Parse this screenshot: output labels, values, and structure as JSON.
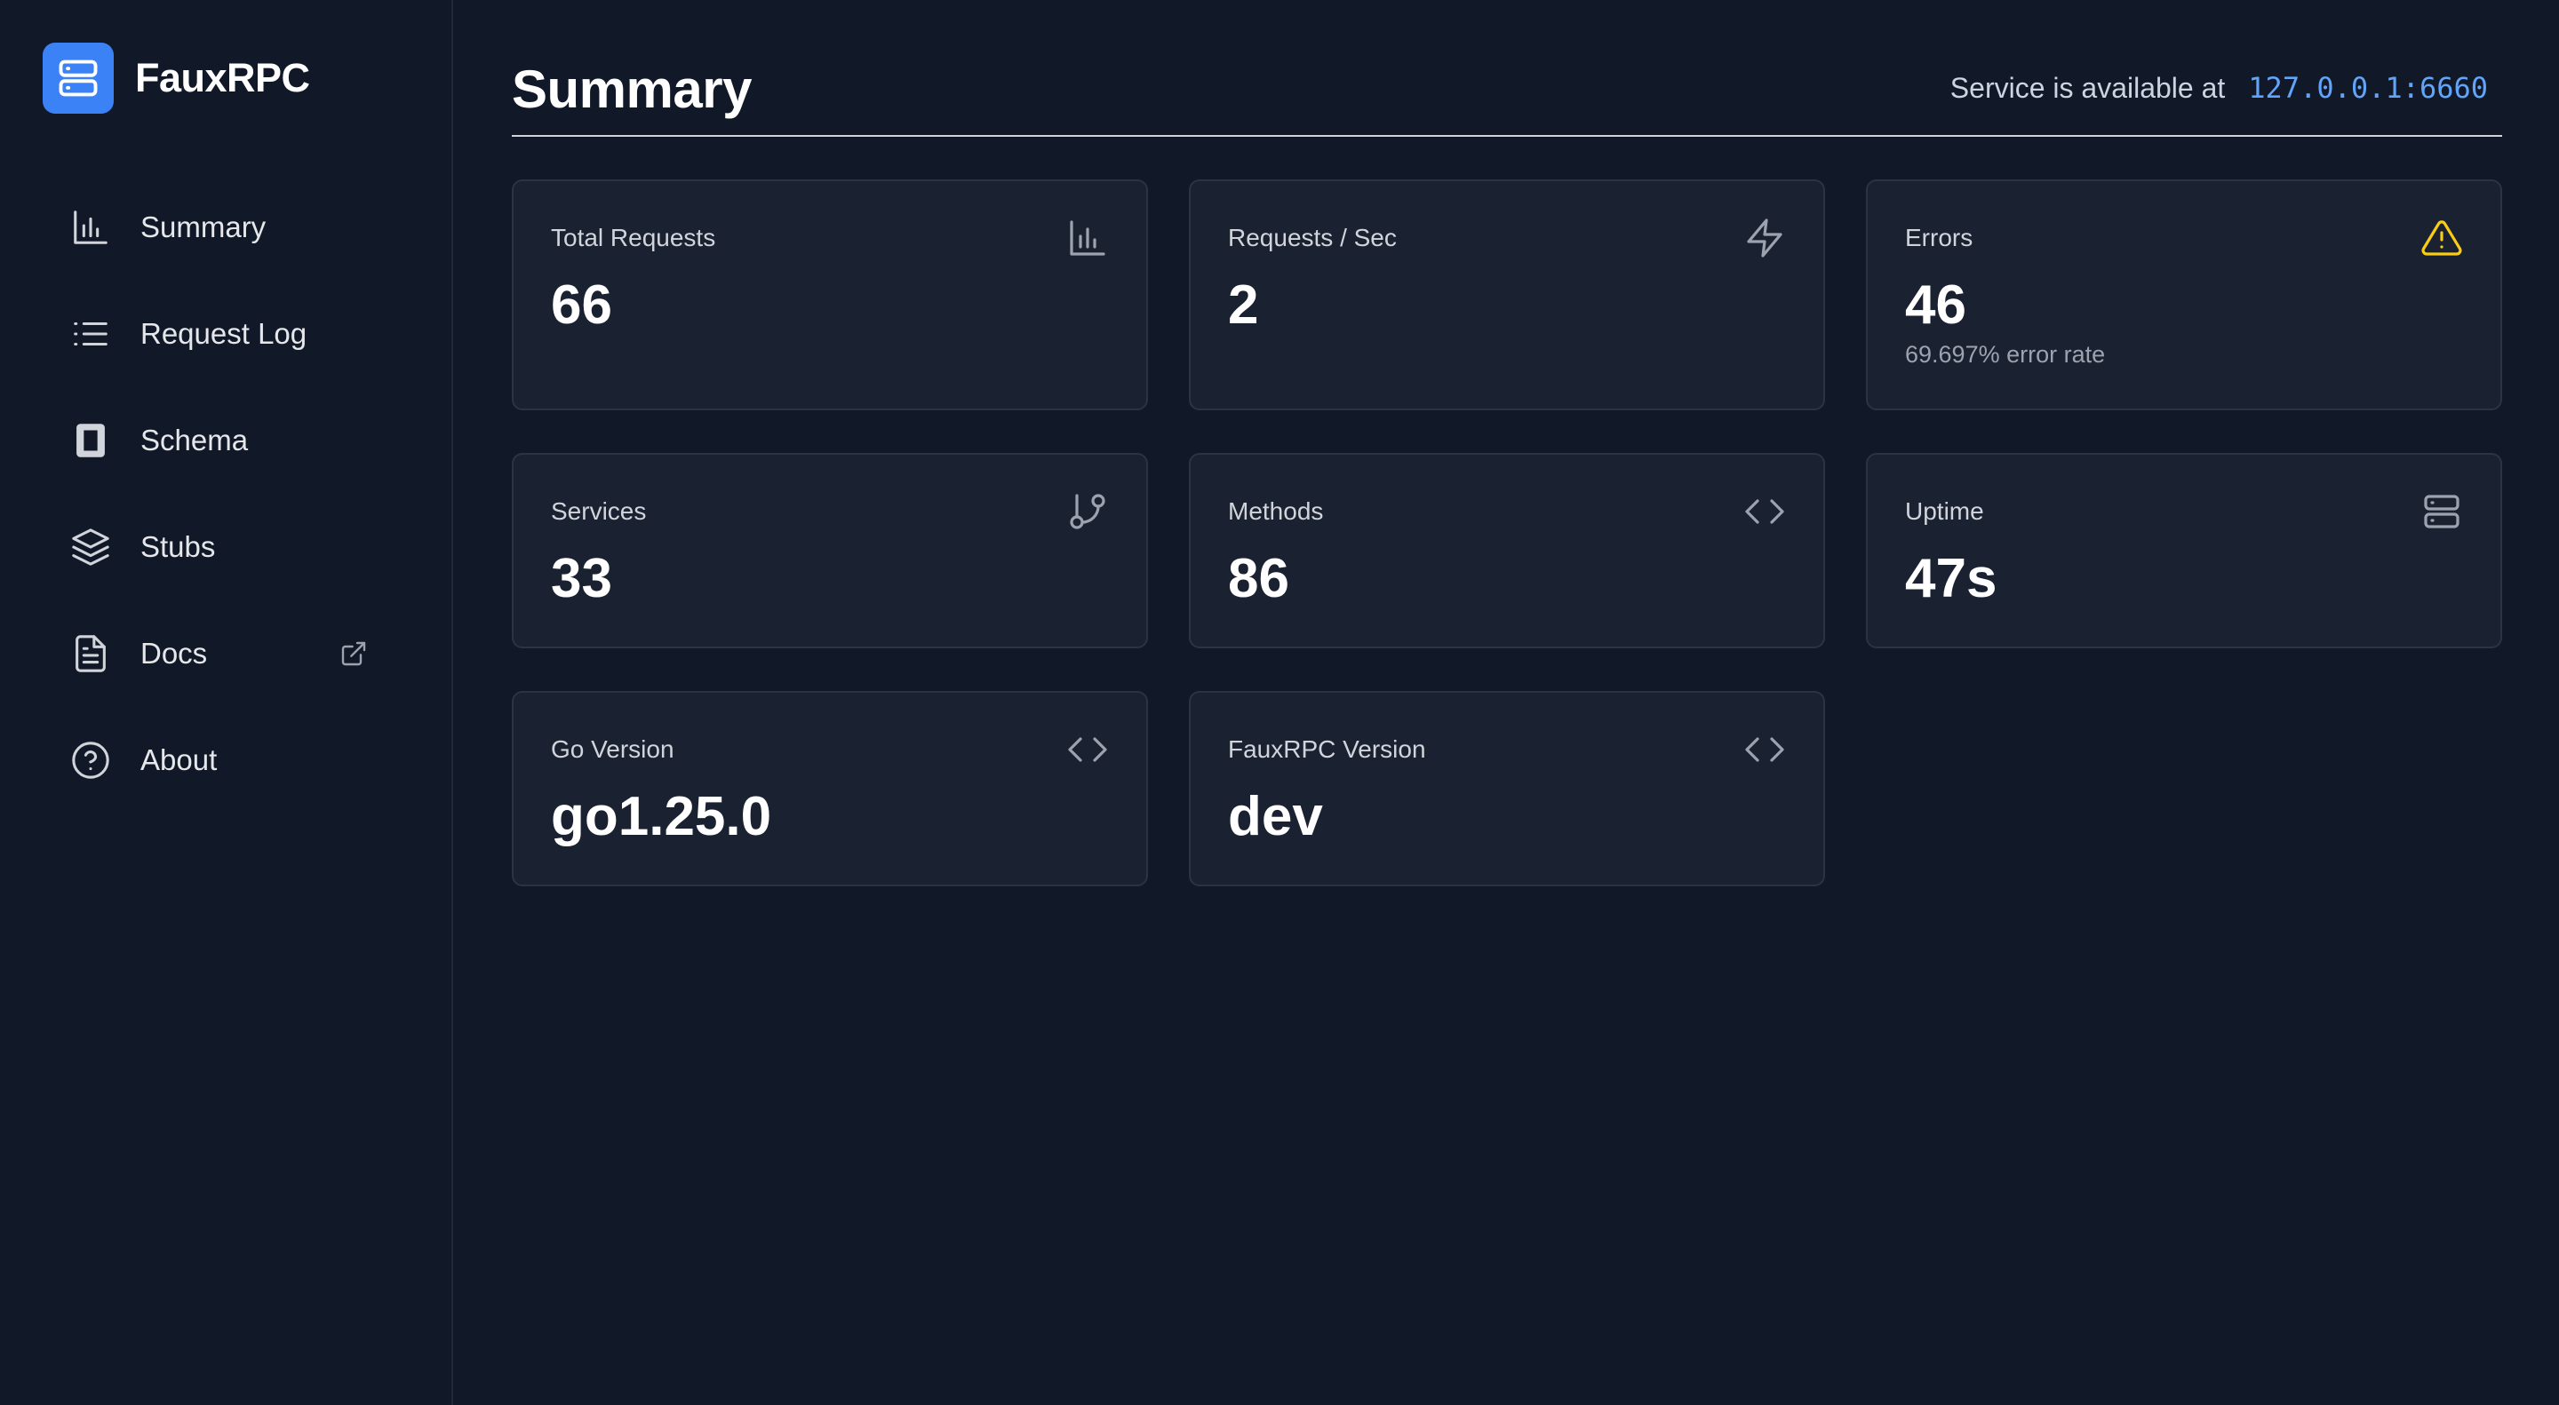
{
  "app": {
    "name": "FauxRPC",
    "logo_icon": "server-icon",
    "accent": "#3b82f6"
  },
  "sidebar": {
    "items": [
      {
        "label": "Summary",
        "icon": "bar-chart-icon"
      },
      {
        "label": "Request Log",
        "icon": "list-icon"
      },
      {
        "label": "Schema",
        "icon": "book-icon"
      },
      {
        "label": "Stubs",
        "icon": "layers-icon"
      },
      {
        "label": "Docs",
        "icon": "document-icon",
        "external_icon": "external-link-icon"
      },
      {
        "label": "About",
        "icon": "help-circle-icon"
      }
    ]
  },
  "header": {
    "title": "Summary",
    "service_label": "Service is available at",
    "service_address": "127.0.0.1:6660",
    "address_color": "#60a5fa"
  },
  "cards": [
    {
      "label": "Total Requests",
      "value": "66",
      "icon": "bar-chart-icon"
    },
    {
      "label": "Requests / Sec",
      "value": "2",
      "icon": "lightning-icon"
    },
    {
      "label": "Errors",
      "value": "46",
      "sub": "69.697% error rate",
      "icon": "warning-icon",
      "icon_color": "#facc15"
    },
    {
      "label": "Services",
      "value": "33",
      "icon": "branch-icon"
    },
    {
      "label": "Methods",
      "value": "86",
      "icon": "code-icon"
    },
    {
      "label": "Uptime",
      "value": "47s",
      "icon": "server-icon"
    },
    {
      "label": "Go Version",
      "value": "go1.25.0",
      "icon": "code-icon"
    },
    {
      "label": "FauxRPC Version",
      "value": "dev",
      "icon": "code-icon"
    }
  ]
}
